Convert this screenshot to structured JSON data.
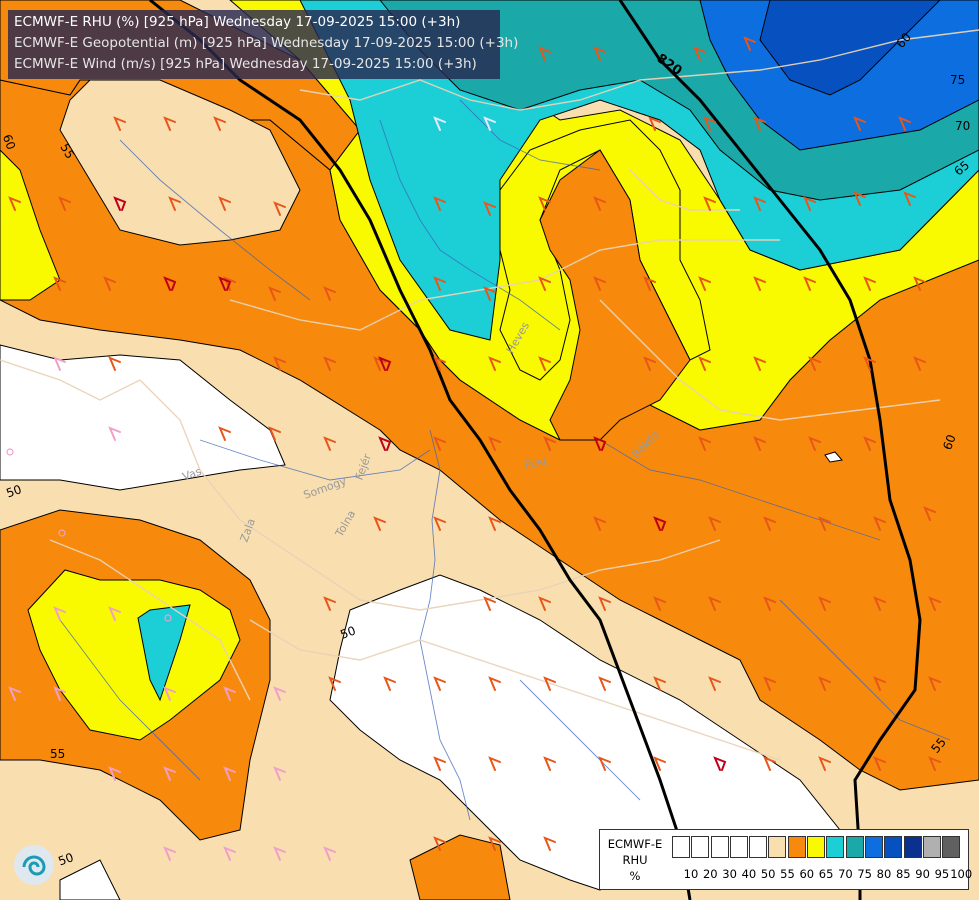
{
  "titles": {
    "line1": "ECMWF-E RHU (%) [925 hPa] Wednesday 17-09-2025 15:00 (+3h)",
    "line2": "ECMWF-E Geopotential (m) [925 hPa] Wednesday 17-09-2025 15:00 (+3h)",
    "line3": "ECMWF-E Wind (m/s) [925 hPa] Wednesday 17-09-2025 15:00 (+3h)"
  },
  "legend": {
    "model": "ECMWF-E",
    "variable": "RHU",
    "unit": "%",
    "colors": [
      "#ffffff",
      "#ffffff",
      "#ffffff",
      "#ffffff",
      "#ffffff",
      "#f9deb0",
      "#f78a0c",
      "#f9f900",
      "#1ccfd6",
      "#1ba8a8",
      "#0d6ee0",
      "#0650c0",
      "#0a3090",
      "#b0b0b0",
      "#606060"
    ],
    "ticks": [
      "10",
      "20",
      "30",
      "40",
      "50",
      "55",
      "60",
      "65",
      "70",
      "75",
      "80",
      "85",
      "90",
      "95",
      "100"
    ]
  },
  "map_labels": {
    "geopotential": "820",
    "contours": [
      "60",
      "75",
      "70",
      "65",
      "60",
      "55",
      "50",
      "50",
      "55",
      "50",
      "55",
      "60",
      "50"
    ],
    "regions": [
      "Heves",
      "Pest",
      "Békés",
      "Vas",
      "Somogy",
      "Zala",
      "Tolna",
      "Fejér"
    ]
  }
}
